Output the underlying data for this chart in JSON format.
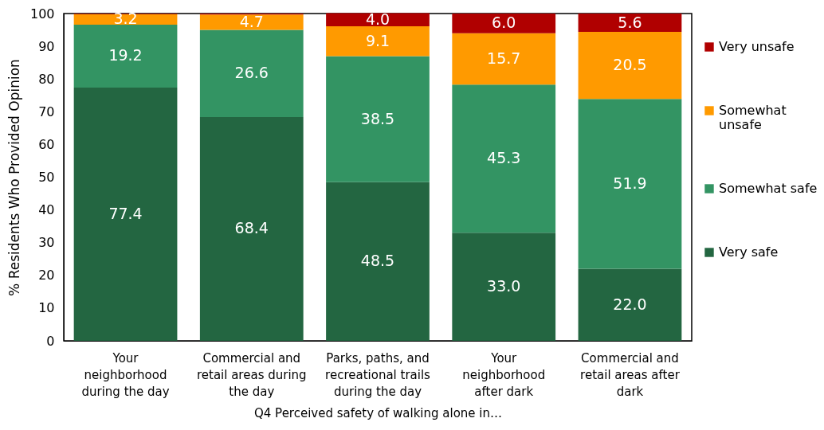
{
  "chart_data": {
    "type": "bar",
    "stacked": true,
    "xlabel": "Q4 Perceived safety of walking alone in…",
    "ylabel": "% Residents Who Provided Opinion",
    "categories": [
      "Your\nneighborhood\nduring the day",
      "Commercial and\nretail areas during\nthe day",
      "Parks, paths, and\nrecreational trails\nduring the day",
      "Your\nneighborhood\nafter dark",
      "Commercial and\nretail areas after\ndark"
    ],
    "ylim": [
      0,
      100
    ],
    "yticks": [
      0,
      10,
      20,
      30,
      40,
      50,
      60,
      70,
      80,
      90,
      100
    ],
    "legend": "right",
    "series": [
      {
        "name": "Very safe",
        "color": "#236641",
        "values": [
          77.4,
          68.4,
          48.5,
          33.0,
          22.0
        ],
        "value_labels": [
          "77.4",
          "68.4",
          "48.5",
          "33.0",
          "22.0"
        ]
      },
      {
        "name": "Somewhat safe",
        "color": "#339463",
        "values": [
          19.2,
          26.6,
          38.5,
          45.3,
          51.9
        ],
        "value_labels": [
          "19.2",
          "26.6",
          "38.5",
          "45.3",
          "51.9"
        ]
      },
      {
        "name": "Somewhat\nunsafe",
        "color": "#ff9a00",
        "values": [
          3.2,
          4.7,
          9.1,
          15.7,
          20.5
        ],
        "value_labels": [
          "3.2",
          "4.7",
          "9.1",
          "15.7",
          "20.5"
        ]
      },
      {
        "name": "Very unsafe",
        "color": "#b00000",
        "values": [
          0.2,
          0.3,
          4.0,
          6.0,
          5.6
        ],
        "value_labels": [
          null,
          null,
          "4.0",
          "6.0",
          "5.6"
        ]
      }
    ]
  }
}
